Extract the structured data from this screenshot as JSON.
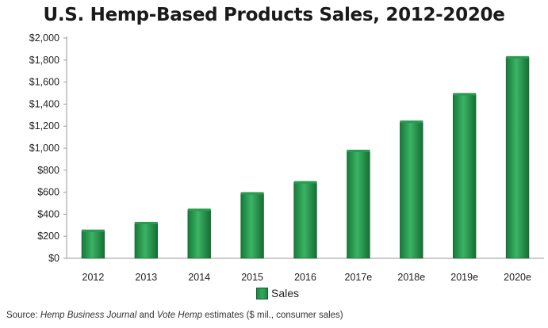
{
  "chart_data": {
    "type": "bar",
    "title": "U.S. Hemp-Based Products Sales, 2012-2020e",
    "categories": [
      "2012",
      "2013",
      "2014",
      "2015",
      "2016",
      "2017e",
      "2018e",
      "2019e",
      "2020e"
    ],
    "series": [
      {
        "name": "Sales",
        "values": [
          250,
          320,
          440,
          590,
          690,
          975,
          1240,
          1490,
          1825
        ]
      }
    ],
    "ylim": [
      0,
      2000
    ],
    "yticks": [
      0,
      200,
      400,
      600,
      800,
      1000,
      1200,
      1400,
      1600,
      1800,
      2000
    ],
    "ytick_labels": [
      "$0",
      "$200",
      "$400",
      "$600",
      "$800",
      "$1,000",
      "$1,200",
      "$1,400",
      "$1,600",
      "$1,800",
      "$2,000"
    ],
    "grid": false,
    "legend": "bottom-center",
    "bar_color": "#1f8a45"
  },
  "source": {
    "prefix": "Source: ",
    "italic1": "Hemp Business Journal",
    "mid": " and ",
    "italic2": "Vote Hemp",
    "suffix": " estimates ($ mil., consumer sales)"
  }
}
